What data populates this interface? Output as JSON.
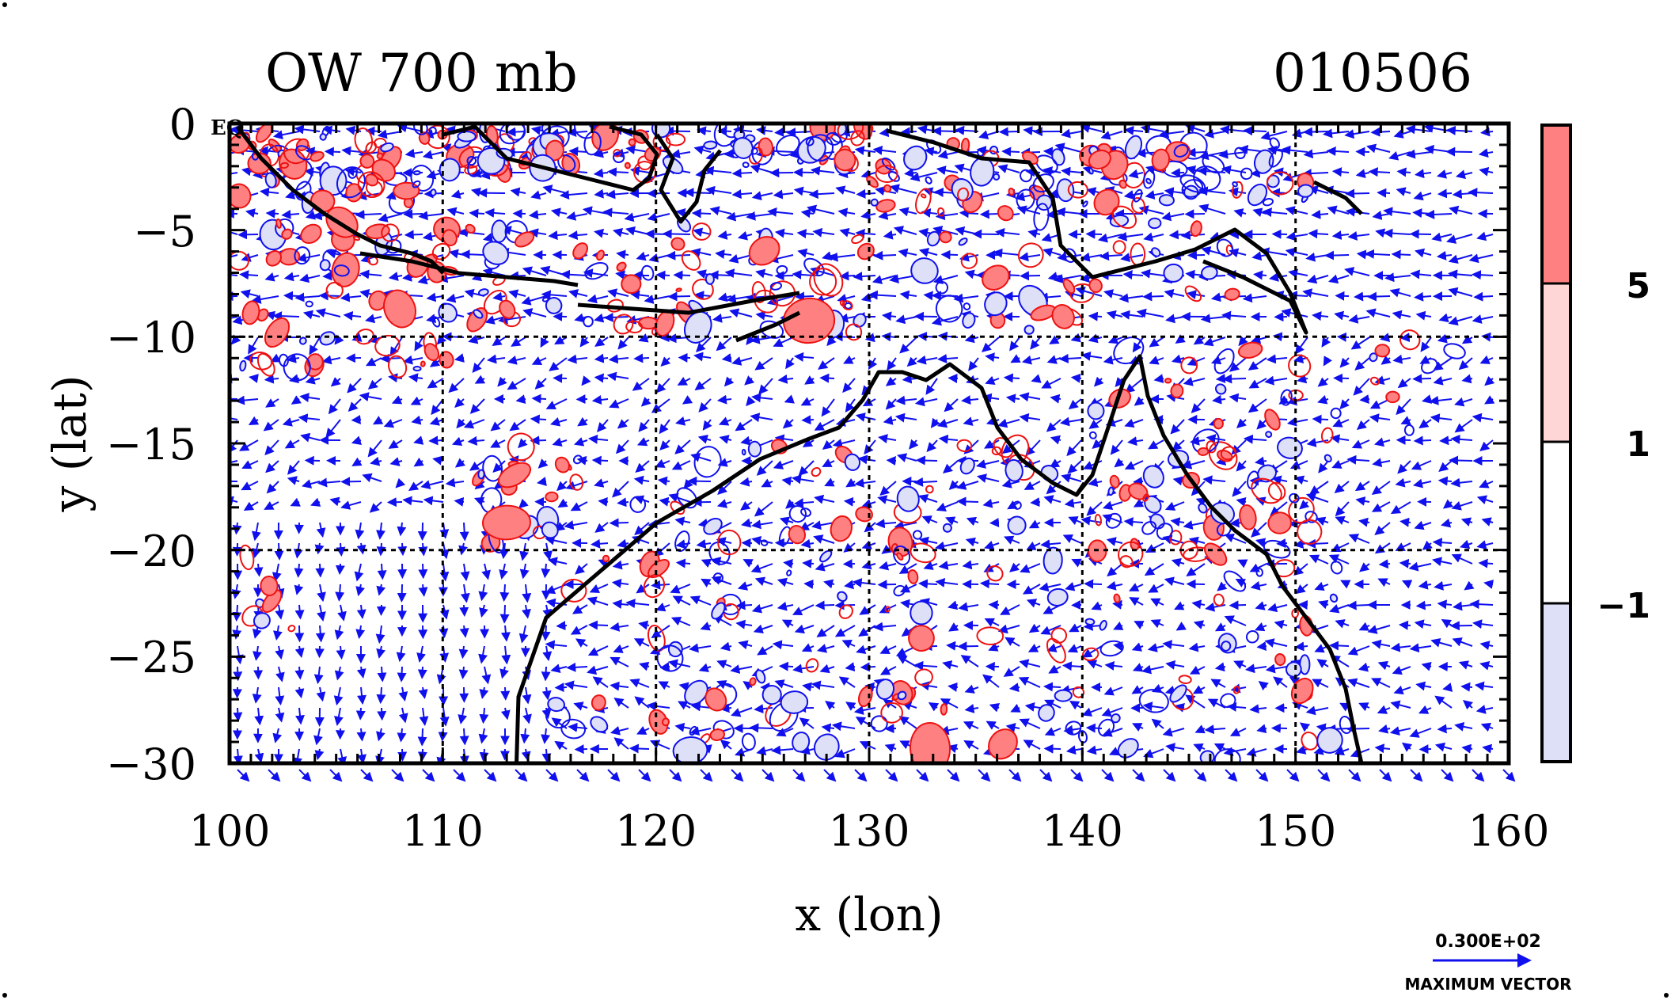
{
  "title": {
    "left": "OW 700 mb",
    "right": "010506"
  },
  "corner_label": "EQ",
  "axes": {
    "x_label": "x (lon)",
    "y_label": "y (lat)",
    "x_ticks": [
      "100",
      "110",
      "120",
      "130",
      "140",
      "150",
      "160"
    ],
    "y_ticks": [
      "0",
      "−5",
      "−10",
      "−15",
      "−20",
      "−25",
      "−30"
    ]
  },
  "colorbar": {
    "labels": [
      "5",
      "1",
      "−1"
    ],
    "colors": [
      "#ff8080",
      "#ffd6d6",
      "#ffffff",
      "#dde0f7"
    ]
  },
  "vector_legend": {
    "magnitude": "0.300E+02",
    "caption": "MAXIMUM VECTOR"
  },
  "colors": {
    "vectors": "#1010ee",
    "contour_positive": "#ee1111",
    "fill_positive": "#ff8080",
    "fill_negative": "#dde0f7",
    "coastline": "#000000",
    "grid": "#000000"
  },
  "chart_data": {
    "type": "map",
    "x_range": [
      100,
      160
    ],
    "y_range": [
      -30,
      0
    ],
    "grid": true,
    "grid_interval_lon": 10,
    "grid_interval_lat": 10,
    "colorbar_levels": [
      -1,
      1,
      5
    ],
    "legend_position": "bottom-right"
  }
}
